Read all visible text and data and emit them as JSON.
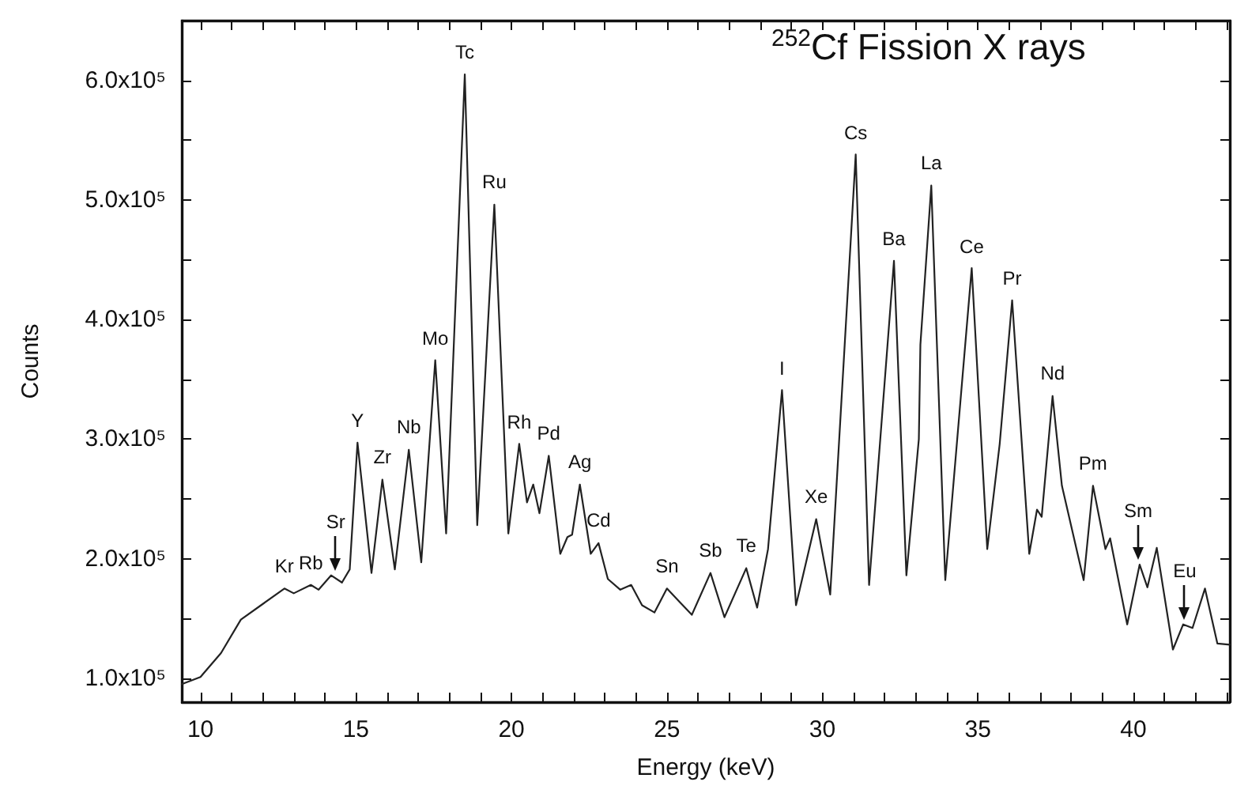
{
  "chart_data": {
    "type": "line",
    "title": "$^{252}$Cf Fission X rays",
    "xlabel": "Energy (keV)",
    "ylabel": "Counts",
    "xlim": [
      9.4,
      43.1
    ],
    "ylim": [
      80000,
      650000
    ],
    "xticks": [
      10,
      {
        "value": 11,
        "label": null
      },
      {
        "value": 12,
        "label": null
      },
      {
        "value": 13,
        "label": null
      },
      {
        "value": 14,
        "label": null
      },
      15,
      {
        "value": 16,
        "label": null
      },
      {
        "value": 17,
        "label": null
      },
      {
        "value": 18,
        "label": null
      },
      {
        "value": 19,
        "label": null
      },
      20,
      {
        "value": 21,
        "label": null
      },
      {
        "value": 22,
        "label": null
      },
      {
        "value": 23,
        "label": null
      },
      {
        "value": 24,
        "label": null
      },
      25,
      {
        "value": 26,
        "label": null
      },
      {
        "value": 27,
        "label": null
      },
      {
        "value": 28,
        "label": null
      },
      {
        "value": 29,
        "label": null
      },
      30,
      {
        "value": 31,
        "label": null
      },
      {
        "value": 32,
        "label": null
      },
      {
        "value": 33,
        "label": null
      },
      {
        "value": 34,
        "label": null
      },
      35,
      {
        "value": 36,
        "label": null
      },
      {
        "value": 37,
        "label": null
      },
      {
        "value": 38,
        "label": null
      },
      {
        "value": 39,
        "label": null
      },
      40,
      {
        "value": 41,
        "label": null
      },
      {
        "value": 42,
        "label": null
      },
      {
        "value": 43,
        "label": null
      }
    ],
    "yticks": [
      {
        "value": 100000,
        "label": "1.0x10⁵"
      },
      {
        "value": 150000,
        "label": null
      },
      {
        "value": 200000,
        "label": "2.0x10⁵"
      },
      {
        "value": 250000,
        "label": null
      },
      {
        "value": 300000,
        "label": "3.0x10⁵"
      },
      {
        "value": 350000,
        "label": null
      },
      {
        "value": 400000,
        "label": "4.0x10⁵"
      },
      {
        "value": 450000,
        "label": null
      },
      {
        "value": 500000,
        "label": "5.0x10⁵"
      },
      {
        "value": 550000,
        "label": null
      },
      {
        "value": 600000,
        "label": "6.0x10⁵"
      }
    ],
    "grid": false,
    "marker": "none",
    "line_style": "solid",
    "series": [
      {
        "color": "#222222",
        "x": [
          9.4,
          10.0,
          10.66,
          11.3,
          12.0,
          12.7,
          13.0,
          13.55,
          13.8,
          14.2,
          14.55,
          14.8,
          15.05,
          15.5,
          15.85,
          16.25,
          16.7,
          17.1,
          17.55,
          17.9,
          18.5,
          18.9,
          19.45,
          19.9,
          20.25,
          20.5,
          20.7,
          20.9,
          21.2,
          21.57,
          21.8,
          21.95,
          22.2,
          22.55,
          22.8,
          23.1,
          23.5,
          23.85,
          24.2,
          24.6,
          25.0,
          25.4,
          25.8,
          26.4,
          26.85,
          27.55,
          27.9,
          28.25,
          28.7,
          29.15,
          29.8,
          30.25,
          31.07,
          31.5,
          32.3,
          32.7,
          33.1,
          33.15,
          33.5,
          33.95,
          34.8,
          35.3,
          35.7,
          36.1,
          36.65,
          36.9,
          37.05,
          37.4,
          37.7,
          38.4,
          38.7,
          39.1,
          39.25,
          39.8,
          40.2,
          40.45,
          40.75,
          41.27,
          41.6,
          41.9,
          42.3,
          42.7,
          43.1
        ],
        "values": [
          95000,
          101000,
          121000,
          149000,
          162000,
          175000,
          171000,
          178000,
          174000,
          186000,
          180000,
          191000,
          297000,
          188000,
          266000,
          191000,
          291000,
          197000,
          366000,
          221000,
          605000,
          228000,
          496000,
          221000,
          296000,
          247000,
          262000,
          238000,
          286000,
          204000,
          218000,
          220000,
          262000,
          204000,
          213000,
          183000,
          174000,
          178000,
          161000,
          155000,
          175000,
          164000,
          153000,
          188000,
          151000,
          192000,
          159000,
          208000,
          341000,
          161000,
          233000,
          170000,
          538000,
          178000,
          449000,
          186000,
          300000,
          379000,
          512000,
          182000,
          443000,
          208000,
          296000,
          416000,
          204000,
          241000,
          235000,
          336000,
          261000,
          182000,
          261000,
          208000,
          217000,
          145000,
          195000,
          176000,
          209000,
          124000,
          145000,
          142000,
          175000,
          129000,
          128000
        ]
      }
    ],
    "annotations": [
      {
        "text": "Kr",
        "x": 12.7,
        "y": 175000
      },
      {
        "text": "Rb",
        "x": 13.55,
        "y": 178000
      },
      {
        "text": "Sr",
        "x": 14.35,
        "y": 186000
      },
      {
        "text": "Y",
        "x": 15.05,
        "y": 297000
      },
      {
        "text": "Zr",
        "x": 15.85,
        "y": 266000
      },
      {
        "text": "Nb",
        "x": 16.7,
        "y": 291000
      },
      {
        "text": "Mo",
        "x": 17.55,
        "y": 366000
      },
      {
        "text": "Tc",
        "x": 18.5,
        "y": 605000
      },
      {
        "text": "Ru",
        "x": 19.45,
        "y": 496000
      },
      {
        "text": "Rh",
        "x": 20.25,
        "y": 296000
      },
      {
        "text": "Pd",
        "x": 21.2,
        "y": 286000
      },
      {
        "text": "Ag",
        "x": 22.2,
        "y": 262000
      },
      {
        "text": "Cd",
        "x": 22.8,
        "y": 213000
      },
      {
        "text": "Sn",
        "x": 25.0,
        "y": 175000
      },
      {
        "text": "Sb",
        "x": 26.4,
        "y": 188000
      },
      {
        "text": "Te",
        "x": 27.55,
        "y": 192000
      },
      {
        "text": "I",
        "x": 28.7,
        "y": 341000
      },
      {
        "text": "Xe",
        "x": 29.8,
        "y": 233000
      },
      {
        "text": "Cs",
        "x": 31.07,
        "y": 538000
      },
      {
        "text": "Ba",
        "x": 32.3,
        "y": 449000
      },
      {
        "text": "La",
        "x": 33.5,
        "y": 512000
      },
      {
        "text": "Ce",
        "x": 34.8,
        "y": 443000
      },
      {
        "text": "Pr",
        "x": 36.1,
        "y": 416000
      },
      {
        "text": "Nd",
        "x": 37.4,
        "y": 336000
      },
      {
        "text": "Pm",
        "x": 38.7,
        "y": 261000
      },
      {
        "text": "Sm",
        "x": 40.15,
        "y": 195000
      },
      {
        "text": "Eu",
        "x": 41.65,
        "y": 145000
      }
    ]
  }
}
